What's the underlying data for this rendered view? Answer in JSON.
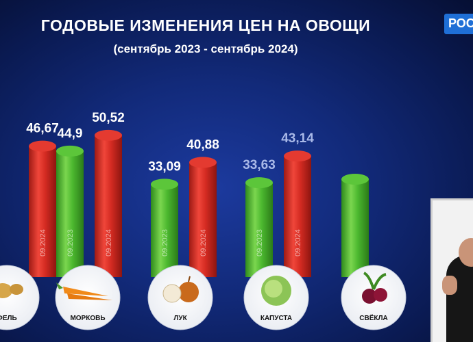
{
  "header": {
    "title": "ГОДОВЫЕ ИЗМЕНЕНИЯ ЦЕН НА ОВОЩИ",
    "subtitle": "(сентябрь 2023 - сентябрь 2024)"
  },
  "channel_logo": {
    "text": "РОС"
  },
  "colors": {
    "bar_2023": "#3fae28",
    "bar_2024": "#d42b22",
    "value_label": "#ffffff",
    "value_label_faded": "#a9b9e8",
    "bar_text": "#ffffff"
  },
  "icons": [
    "potato-icon",
    "carrot-icon",
    "onion-icon",
    "cabbage-icon",
    "beet-icon"
  ],
  "chart_data": {
    "type": "bar",
    "title": "ГОДОВЫЕ ИЗМЕНЕНИЯ ЦЕН НА ОВОЩИ",
    "subtitle": "(сентябрь 2023 - сентябрь 2024)",
    "categories": [
      "ФЕЛЬ",
      "МОРКОВЬ",
      "ЛУК",
      "КАПУСТА",
      "СВЁКЛА"
    ],
    "series": [
      {
        "name": "09.2023",
        "values": [
          null,
          44.9,
          33.09,
          33.63,
          null
        ],
        "labels": [
          "",
          "44,9",
          "33,09",
          "33,63",
          ""
        ]
      },
      {
        "name": "09.2024",
        "values": [
          46.67,
          50.52,
          40.88,
          43.14,
          null
        ],
        "labels": [
          "46,67",
          "50,52",
          "40,88",
          "43,14",
          ""
        ]
      }
    ],
    "ylim": [
      0,
      60
    ],
    "grid": false
  }
}
